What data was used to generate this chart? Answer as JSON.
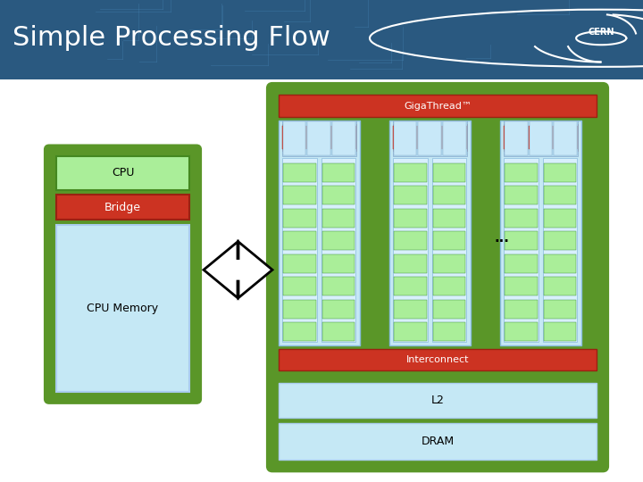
{
  "title": "Simple Processing Flow",
  "title_color": "#ffffff",
  "title_fontsize": 22,
  "header_color": "#2c5f8a",
  "green_dark": "#5a9628",
  "green_fill": "#5a9628",
  "red_bar": "#cc3322",
  "light_green": "#aaee99",
  "light_blue": "#c5e8f5",
  "cpu_label": "CPU",
  "bridge_label": "Bridge",
  "cpu_memory_label": "CPU Memory",
  "gigathread_label": "GigaThread™",
  "interconnect_label": "Interconnect",
  "l2_label": "L2",
  "dram_label": "DRAM",
  "dots_label": "..."
}
